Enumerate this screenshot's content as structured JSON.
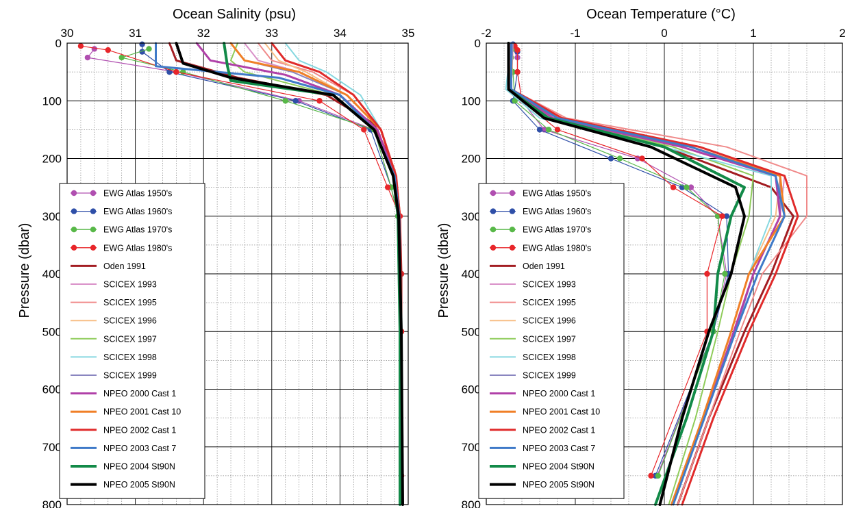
{
  "legend_entries": [
    {
      "label": "EWG Atlas 1950's",
      "color": "#b04fb0",
      "marker": true,
      "width": 1.2
    },
    {
      "label": "EWG Atlas 1960's",
      "color": "#2f4fa8",
      "marker": true,
      "width": 1.2
    },
    {
      "label": "EWG Atlas 1970's",
      "color": "#58b848",
      "marker": true,
      "width": 1.2
    },
    {
      "label": "EWG Atlas 1980's",
      "color": "#e8262a",
      "marker": true,
      "width": 1.2
    },
    {
      "label": "Oden 1991",
      "color": "#a31d22",
      "marker": false,
      "width": 3
    },
    {
      "label": "SCICEX 1993",
      "color": "#d991c8",
      "marker": false,
      "width": 2
    },
    {
      "label": "SCICEX 1995",
      "color": "#f08a8a",
      "marker": false,
      "width": 2
    },
    {
      "label": "SCICEX 1996",
      "color": "#f7be86",
      "marker": false,
      "width": 2
    },
    {
      "label": "SCICEX 1997",
      "color": "#8fcc5a",
      "marker": false,
      "width": 2
    },
    {
      "label": "SCICEX 1998",
      "color": "#86d8e0",
      "marker": false,
      "width": 2
    },
    {
      "label": "SCICEX 1999",
      "color": "#8a86c0",
      "marker": false,
      "width": 2
    },
    {
      "label": "NPEO 2000 Cast 1",
      "color": "#b040a8",
      "marker": false,
      "width": 3
    },
    {
      "label": "NPEO 2001 Cast 10",
      "color": "#f07f26",
      "marker": false,
      "width": 3
    },
    {
      "label": "NPEO 2002 Cast 1",
      "color": "#e02a2a",
      "marker": false,
      "width": 3
    },
    {
      "label": "NPEO 2003 Cast 7",
      "color": "#3f7ac8",
      "marker": false,
      "width": 3
    },
    {
      "label": "NPEO 2004 St90N",
      "color": "#128a48",
      "marker": false,
      "width": 4
    },
    {
      "label": "NPEO 2005 St90N",
      "color": "#000000",
      "marker": false,
      "width": 4
    }
  ],
  "chart_data": [
    {
      "type": "line",
      "title": "",
      "xlabel": "Ocean Salinity  (psu)",
      "ylabel": "Pressure  (dbar)",
      "xlim": [
        30,
        35
      ],
      "ylim": [
        800,
        0
      ],
      "xticks": [
        "30",
        "31",
        "32",
        "33",
        "34",
        "35"
      ],
      "yticks": [
        "0",
        "100",
        "200",
        "300",
        "400",
        "500",
        "600",
        "700",
        "800"
      ],
      "grid": true,
      "legend_position": "bottom-left",
      "series": [
        {
          "name": "EWG Atlas 1950's",
          "x": [
            30.4,
            30.3,
            31.6,
            33.4,
            34.5,
            34.75,
            34.85,
            34.9,
            34.9,
            34.9
          ],
          "y": [
            10,
            25,
            50,
            100,
            150,
            250,
            300,
            400,
            500,
            750
          ]
        },
        {
          "name": "EWG Atlas 1960's",
          "x": [
            31.1,
            31.1,
            31.5,
            33.35,
            34.45,
            34.75,
            34.85,
            34.9,
            34.9,
            34.9
          ],
          "y": [
            2,
            15,
            50,
            100,
            150,
            250,
            300,
            400,
            500,
            750
          ]
        },
        {
          "name": "EWG Atlas 1970's",
          "x": [
            31.2,
            30.8,
            31.7,
            33.2,
            34.5,
            34.75,
            34.85,
            34.9,
            34.9,
            34.9
          ],
          "y": [
            10,
            25,
            50,
            100,
            150,
            250,
            300,
            400,
            500,
            750
          ]
        },
        {
          "name": "EWG Atlas 1980's",
          "x": [
            30.2,
            30.6,
            31.6,
            33.7,
            34.35,
            34.7,
            34.88,
            34.9,
            34.9,
            34.9
          ],
          "y": [
            5,
            12,
            50,
            100,
            150,
            250,
            300,
            400,
            500,
            750
          ]
        },
        {
          "name": "Oden 1991",
          "x": [
            31.5,
            31.6,
            32.5,
            33.8,
            34.5,
            34.8,
            34.88,
            34.9,
            34.9,
            34.92
          ],
          "y": [
            0,
            30,
            60,
            90,
            140,
            220,
            300,
            400,
            500,
            800
          ]
        },
        {
          "name": "SCICEX 1993",
          "x": [
            32.6,
            32.8,
            33.4,
            34.1,
            34.6,
            34.82,
            34.88,
            34.9,
            34.92
          ],
          "y": [
            0,
            30,
            50,
            90,
            150,
            230,
            300,
            500,
            800
          ]
        },
        {
          "name": "SCICEX 1995",
          "x": [
            32.8,
            33.0,
            33.6,
            34.2,
            34.6,
            34.83,
            34.88,
            34.9,
            34.92
          ],
          "y": [
            0,
            30,
            50,
            90,
            150,
            230,
            300,
            500,
            800
          ]
        },
        {
          "name": "SCICEX 1996",
          "x": [
            32.9,
            33.1,
            33.5,
            34.1,
            34.6,
            34.82,
            34.88,
            34.9,
            34.92
          ],
          "y": [
            0,
            30,
            50,
            90,
            150,
            230,
            300,
            500,
            800
          ]
        },
        {
          "name": "SCICEX 1997",
          "x": [
            32.5,
            32.4,
            32.6,
            33.9,
            34.55,
            34.8,
            34.87,
            34.9,
            34.92
          ],
          "y": [
            0,
            30,
            50,
            90,
            150,
            230,
            300,
            500,
            800
          ]
        },
        {
          "name": "SCICEX 1998",
          "x": [
            33.2,
            33.4,
            33.8,
            34.3,
            34.6,
            34.82,
            34.88,
            34.9,
            34.92
          ],
          "y": [
            0,
            30,
            50,
            90,
            150,
            230,
            300,
            500,
            800
          ]
        },
        {
          "name": "SCICEX 1999",
          "x": [
            32.4,
            32.6,
            33.3,
            34.1,
            34.6,
            34.82,
            34.88,
            34.9,
            34.92
          ],
          "y": [
            0,
            30,
            50,
            90,
            150,
            230,
            300,
            500,
            800
          ]
        },
        {
          "name": "NPEO 2000 Cast 1",
          "x": [
            31.9,
            32.1,
            33.2,
            34.0,
            34.55,
            34.8,
            34.87,
            34.9,
            34.92
          ],
          "y": [
            0,
            30,
            55,
            90,
            150,
            230,
            300,
            500,
            800
          ]
        },
        {
          "name": "NPEO 2001 Cast 10",
          "x": [
            32.4,
            32.6,
            33.4,
            34.1,
            34.6,
            34.82,
            34.88,
            34.9,
            34.92
          ],
          "y": [
            0,
            30,
            50,
            90,
            150,
            230,
            300,
            500,
            800
          ]
        },
        {
          "name": "NPEO 2002 Cast 1",
          "x": [
            33.0,
            33.2,
            33.7,
            34.2,
            34.6,
            34.82,
            34.88,
            34.9,
            34.92
          ],
          "y": [
            0,
            30,
            50,
            90,
            150,
            230,
            300,
            500,
            800
          ]
        },
        {
          "name": "NPEO 2003 Cast 7",
          "x": [
            31.3,
            31.3,
            33.1,
            34.0,
            34.5,
            34.8,
            34.87,
            34.9,
            34.92
          ],
          "y": [
            0,
            40,
            60,
            90,
            150,
            230,
            300,
            500,
            800
          ]
        },
        {
          "name": "NPEO 2004 St90N",
          "x": [
            32.3,
            32.35,
            32.4,
            33.9,
            34.5,
            34.78,
            34.85,
            34.88,
            34.88
          ],
          "y": [
            0,
            40,
            65,
            90,
            150,
            230,
            300,
            500,
            800
          ]
        },
        {
          "name": "NPEO 2005 St90N",
          "x": [
            31.6,
            31.7,
            32.4,
            33.9,
            34.5,
            34.78,
            34.86,
            34.9,
            34.92
          ],
          "y": [
            0,
            35,
            60,
            90,
            150,
            230,
            300,
            500,
            800
          ]
        }
      ]
    },
    {
      "type": "line",
      "title": "",
      "xlabel": "Ocean Temperature (°C)",
      "ylabel": "Pressure  (dbar)",
      "xlim": [
        -2,
        2
      ],
      "ylim": [
        800,
        0
      ],
      "xticks": [
        "-2",
        "-1",
        "0",
        "1",
        "2"
      ],
      "yticks": [
        "0",
        "100",
        "200",
        "300",
        "400",
        "500",
        "600",
        "700",
        "800"
      ],
      "grid": true,
      "legend_position": "bottom-left",
      "series": [
        {
          "name": "EWG Atlas 1950's",
          "x": [
            -1.7,
            -1.65,
            -1.65,
            -1.6,
            -1.35,
            -0.3,
            0.3,
            0.6,
            0.7,
            0.55,
            -0.08
          ],
          "y": [
            10,
            25,
            50,
            100,
            150,
            200,
            250,
            300,
            400,
            500,
            750
          ]
        },
        {
          "name": "EWG Atlas 1960's",
          "x": [
            -1.7,
            -1.65,
            -1.65,
            -1.7,
            -1.4,
            -0.6,
            0.2,
            0.7,
            0.72,
            0.55,
            -0.1
          ],
          "y": [
            2,
            15,
            50,
            100,
            150,
            200,
            250,
            300,
            400,
            500,
            750
          ]
        },
        {
          "name": "EWG Atlas 1970's",
          "x": [
            -1.7,
            -1.72,
            -1.7,
            -1.68,
            -1.3,
            -0.5,
            0.25,
            0.6,
            0.68,
            0.55,
            -0.07
          ],
          "y": [
            10,
            25,
            50,
            100,
            150,
            200,
            250,
            300,
            400,
            500,
            750
          ]
        },
        {
          "name": "EWG Atlas 1980's",
          "x": [
            -1.68,
            -1.65,
            -1.65,
            -1.6,
            -1.2,
            -0.25,
            0.1,
            0.65,
            0.48,
            0.48,
            -0.15
          ],
          "y": [
            5,
            12,
            50,
            100,
            150,
            200,
            250,
            300,
            400,
            500,
            750
          ]
        },
        {
          "name": "Oden 1991",
          "x": [
            -1.75,
            -1.75,
            -1.3,
            0.0,
            1.2,
            1.45,
            1.2,
            0.9,
            0.5,
            0.15
          ],
          "y": [
            0,
            80,
            130,
            180,
            250,
            300,
            400,
            500,
            650,
            800
          ]
        },
        {
          "name": "SCICEX 1993",
          "x": [
            -1.7,
            -1.72,
            -1.2,
            0.3,
            1.35,
            1.3,
            1.0,
            0.8,
            0.45,
            0.1
          ],
          "y": [
            0,
            80,
            130,
            180,
            230,
            300,
            400,
            500,
            650,
            800
          ]
        },
        {
          "name": "SCICEX 1995",
          "x": [
            -1.7,
            -1.72,
            -1.1,
            0.7,
            1.6,
            1.6,
            1.1,
            0.85,
            0.5,
            0.15
          ],
          "y": [
            0,
            80,
            130,
            180,
            230,
            300,
            400,
            500,
            650,
            800
          ]
        },
        {
          "name": "SCICEX 1996",
          "x": [
            -1.7,
            -1.72,
            -1.2,
            0.4,
            1.3,
            1.25,
            0.95,
            0.75,
            0.45,
            0.1
          ],
          "y": [
            0,
            80,
            130,
            180,
            230,
            300,
            400,
            500,
            650,
            800
          ]
        },
        {
          "name": "SCICEX 1997",
          "x": [
            -1.7,
            -1.75,
            -1.3,
            0.1,
            1.0,
            0.95,
            0.75,
            0.6,
            0.35,
            0.05
          ],
          "y": [
            0,
            80,
            130,
            180,
            230,
            300,
            400,
            500,
            650,
            800
          ]
        },
        {
          "name": "SCICEX 1998",
          "x": [
            -1.72,
            -1.78,
            -1.4,
            0.0,
            1.2,
            1.2,
            0.95,
            0.75,
            0.45,
            0.1
          ],
          "y": [
            0,
            80,
            130,
            180,
            230,
            300,
            400,
            500,
            650,
            800
          ]
        },
        {
          "name": "SCICEX 1999",
          "x": [
            -1.7,
            -1.73,
            -1.2,
            0.3,
            1.3,
            1.3,
            1.0,
            0.8,
            0.45,
            0.1
          ],
          "y": [
            0,
            80,
            130,
            180,
            230,
            300,
            400,
            500,
            650,
            800
          ]
        },
        {
          "name": "NPEO 2000 Cast 1",
          "x": [
            -1.72,
            -1.72,
            -1.25,
            0.2,
            1.25,
            1.3,
            1.0,
            0.78,
            0.45,
            0.08
          ],
          "y": [
            0,
            80,
            130,
            180,
            230,
            300,
            400,
            500,
            650,
            800
          ]
        },
        {
          "name": "NPEO 2001 Cast 10",
          "x": [
            -1.72,
            -1.72,
            -1.2,
            0.3,
            1.3,
            1.35,
            0.95,
            0.75,
            0.43,
            0.08
          ],
          "y": [
            0,
            80,
            130,
            180,
            230,
            300,
            400,
            500,
            650,
            800
          ]
        },
        {
          "name": "NPEO 2002 Cast 1",
          "x": [
            -1.72,
            -1.72,
            -1.15,
            0.4,
            1.35,
            1.5,
            1.25,
            0.95,
            0.55,
            0.2
          ],
          "y": [
            0,
            80,
            130,
            180,
            230,
            300,
            400,
            500,
            650,
            800
          ]
        },
        {
          "name": "NPEO 2003 Cast 7",
          "x": [
            -1.72,
            -1.72,
            -1.2,
            0.3,
            1.25,
            1.35,
            1.05,
            0.8,
            0.45,
            0.1
          ],
          "y": [
            0,
            80,
            130,
            180,
            230,
            300,
            400,
            500,
            650,
            800
          ]
        },
        {
          "name": "NPEO 2004 St90N",
          "x": [
            -1.75,
            -1.75,
            -1.3,
            0.0,
            0.9,
            0.75,
            0.6,
            0.55,
            0.25,
            -0.1
          ],
          "y": [
            0,
            80,
            130,
            180,
            250,
            300,
            400,
            500,
            650,
            800
          ]
        },
        {
          "name": "NPEO 2005 St90N",
          "x": [
            -1.75,
            -1.75,
            -1.35,
            -0.15,
            0.8,
            0.9,
            0.75,
            0.5,
            0.2,
            -0.05
          ],
          "y": [
            0,
            80,
            130,
            180,
            250,
            300,
            400,
            500,
            650,
            800
          ]
        }
      ]
    }
  ]
}
